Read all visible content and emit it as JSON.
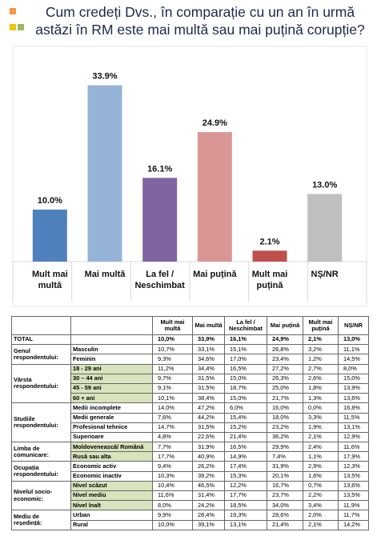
{
  "chart_data": {
    "type": "bar",
    "title": "Cum credeți Dvs., în comparație cu un an în urmă astăzi în RM este mai multă sau mai puțină corupție?",
    "categories": [
      "Mult mai multă",
      "Mai multă",
      "La fel / Neschimbat",
      "Mai puțină",
      "Mult mai puțină",
      "NȘ/NR"
    ],
    "values": [
      10.0,
      33.9,
      16.1,
      24.9,
      2.1,
      13.0
    ],
    "value_labels": [
      "10.0%",
      "33.9%",
      "16.1%",
      "24.9%",
      "2.1%",
      "13.0%"
    ],
    "colors": [
      "#4f81bd",
      "#95b3d7",
      "#8064a2",
      "#d99694",
      "#c0504d",
      "#bfbfbf"
    ],
    "ylim": [
      0,
      40
    ]
  },
  "table": {
    "header": [
      "Mult mai multă",
      "Mai multă",
      "La fel / Neschimbat",
      "Mai puțină",
      "Mult mai puțină",
      "NȘ/NR"
    ],
    "total": {
      "label": "TOTAL",
      "values": [
        "10,0%",
        "33,9%",
        "16,1%",
        "24,9%",
        "2,1%",
        "13,0%"
      ]
    },
    "groups": [
      {
        "label": "Genul respondentului:",
        "rows": [
          {
            "label": "Masculin",
            "values": [
              "10,7%",
              "33,1%",
              "15,1%",
              "26,8%",
              "3,2%",
              "11,1%"
            ]
          },
          {
            "label": "Feminin",
            "values": [
              "9,3%",
              "34,6%",
              "17,0%",
              "23,4%",
              "1,2%",
              "14,5%"
            ]
          }
        ]
      },
      {
        "label": "Vârsta respondentului:",
        "rows": [
          {
            "label": "18 - 29 ani",
            "values": [
              "11,2%",
              "34,4%",
              "16,5%",
              "27,2%",
              "2,7%",
              "8,0%"
            ]
          },
          {
            "label": "30 – 44 ani",
            "values": [
              "9,7%",
              "31,5%",
              "15,0%",
              "26,3%",
              "2,6%",
              "15,0%"
            ]
          },
          {
            "label": "45 - 59 ani",
            "values": [
              "9,1%",
              "31,5%",
              "18,7%",
              "25,0%",
              "1,8%",
              "13,9%"
            ]
          },
          {
            "label": "60 + ani",
            "values": [
              "10,1%",
              "38,4%",
              "15,0%",
              "21,7%",
              "1,3%",
              "13,6%"
            ]
          }
        ]
      },
      {
        "label": "Studiile respondentului:",
        "rows": [
          {
            "label": "Medii incomplete",
            "values": [
              "14,0%",
              "47,2%",
              "6,0%",
              "16,0%",
              "0,0%",
              "16,8%"
            ]
          },
          {
            "label": "Medii generale",
            "values": [
              "7,6%",
              "44,2%",
              "15,4%",
              "18,0%",
              "3,3%",
              "11,5%"
            ]
          },
          {
            "label": "Profesional tehnice",
            "values": [
              "14,7%",
              "31,5%",
              "15,2%",
              "23,2%",
              "1,9%",
              "13,1%"
            ]
          },
          {
            "label": "Superioare",
            "values": [
              "4,8%",
              "22,6%",
              "21,4%",
              "36,2%",
              "2,1%",
              "12,9%"
            ]
          }
        ]
      },
      {
        "label": "Limba de comunicare:",
        "rows": [
          {
            "label": "Moldovenească/ Română",
            "values": [
              "7,7%",
              "31,9%",
              "16,5%",
              "29,9%",
              "2,4%",
              "11,6%"
            ]
          },
          {
            "label": "Rusă sau alta",
            "values": [
              "17,7%",
              "40,9%",
              "14,9%",
              "7,4%",
              "1,1%",
              "17,9%"
            ]
          }
        ]
      },
      {
        "label": "Ocupația respondentului:",
        "rows": [
          {
            "label": "Economic activ",
            "values": [
              "9,4%",
              "26,2%",
              "17,4%",
              "31,9%",
              "2,9%",
              "12,3%"
            ]
          },
          {
            "label": "Economic inactiv",
            "values": [
              "10,3%",
              "39,2%",
              "15,3%",
              "20,1%",
              "1,6%",
              "13,5%"
            ]
          }
        ]
      },
      {
        "label": "Nivelul socio-economic:",
        "rows": [
          {
            "label": "Nivel scăzut",
            "values": [
              "10,4%",
              "46,5%",
              "12,2%",
              "16,7%",
              "0,7%",
              "13,6%"
            ]
          },
          {
            "label": "Nivel mediu",
            "values": [
              "11,6%",
              "31,4%",
              "17,7%",
              "23,7%",
              "2,2%",
              "13,5%"
            ]
          },
          {
            "label": "Nivel înalt",
            "values": [
              "8,0%",
              "24,2%",
              "18,5%",
              "34,0%",
              "3,4%",
              "11,9%"
            ]
          }
        ]
      },
      {
        "label": "Mediu de reședință:",
        "rows": [
          {
            "label": "Urban",
            "values": [
              "9,9%",
              "28,4%",
              "19,3%",
              "28,6%",
              "2,0%",
              "11,7%"
            ]
          },
          {
            "label": "Rural",
            "values": [
              "10,0%",
              "39,1%",
              "13,1%",
              "21,4%",
              "2,1%",
              "14,2%"
            ]
          }
        ]
      }
    ]
  }
}
